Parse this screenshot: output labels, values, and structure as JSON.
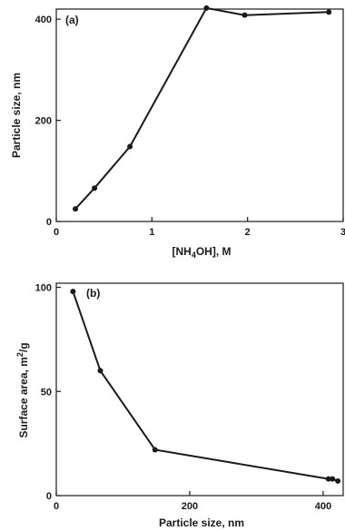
{
  "chart_data": [
    {
      "type": "line",
      "panel_label": "(a)",
      "xlabel_main": "[NH",
      "xlabel_sub": "4",
      "xlabel_tail": "OH], M",
      "ylabel": "Particle size, nm",
      "xlim": [
        0,
        3
      ],
      "ylim": [
        0,
        420
      ],
      "xticks": [
        0,
        1,
        2,
        3
      ],
      "yticks": [
        0,
        200,
        400
      ],
      "xtick_labels": [
        "0",
        "1",
        "2",
        "3"
      ],
      "ytick_labels": [
        "0",
        "200",
        "400"
      ],
      "grid": false,
      "x": [
        0.2,
        0.4,
        0.77,
        1.57,
        1.97,
        2.85
      ],
      "y": [
        25,
        66,
        148,
        422,
        408,
        414
      ]
    },
    {
      "type": "line",
      "panel_label": "(b)",
      "xlabel": "Particle size, nm",
      "ylabel_main": "Surface area, m",
      "ylabel_sup": "2",
      "ylabel_tail": "/g",
      "xlim": [
        0,
        430
      ],
      "ylim": [
        0,
        102
      ],
      "xticks": [
        0,
        200,
        400
      ],
      "yticks": [
        0,
        50,
        100
      ],
      "xtick_labels": [
        "0",
        "200",
        "400"
      ],
      "ytick_labels": [
        "0",
        "50",
        "100"
      ],
      "grid": false,
      "x": [
        25,
        66,
        148,
        408,
        414,
        422
      ],
      "y": [
        98,
        60,
        22,
        8,
        8,
        7
      ]
    }
  ]
}
